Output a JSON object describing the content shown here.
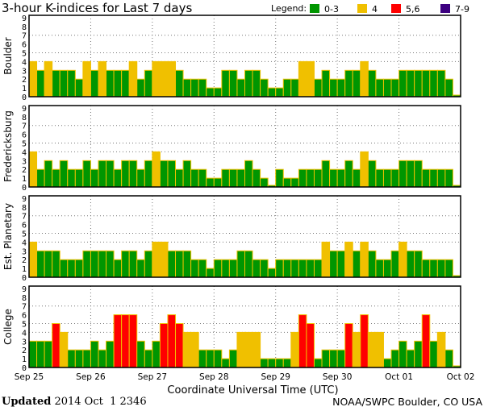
{
  "chart_data": {
    "type": "bar",
    "title": "3-hour K-indices for Last 7 days",
    "xlabel": "Coordinate Universal Time (UTC)",
    "ylim": [
      0,
      9
    ],
    "yticks": [
      "0",
      "1",
      "2",
      "3",
      "4",
      "5",
      "6",
      "7",
      "8",
      "9"
    ],
    "x_tick_labels": [
      "Sep 25",
      "Sep 26",
      "Sep 27",
      "Sep 28",
      "Sep 29",
      "Sep 30",
      "Oct 01",
      "Oct 02"
    ],
    "legend": {
      "title": "Legend:",
      "position": "top-right",
      "entries": [
        {
          "label": "0-3",
          "color": "#009600"
        },
        {
          "label": "4",
          "color": "#f0c000"
        },
        {
          "label": "5,6",
          "color": "#ff0000"
        },
        {
          "label": "7-9",
          "color": "#3c0080"
        }
      ]
    },
    "series": [
      {
        "name": "Boulder",
        "values": [
          4,
          3,
          4,
          3,
          3,
          3,
          2,
          4,
          3,
          4,
          3,
          3,
          3,
          4,
          2,
          3,
          4,
          4,
          4,
          3,
          2,
          2,
          2,
          1,
          1,
          3,
          3,
          2,
          3,
          3,
          2,
          1,
          1,
          2,
          2,
          4,
          4,
          2,
          3,
          2,
          2,
          3,
          3,
          4,
          3,
          2,
          2,
          2,
          3,
          3,
          3,
          3,
          3,
          3,
          2,
          0
        ]
      },
      {
        "name": "Fredericksburg",
        "values": [
          4,
          2,
          3,
          2,
          3,
          2,
          2,
          3,
          2,
          3,
          3,
          2,
          3,
          3,
          2,
          3,
          4,
          3,
          3,
          2,
          3,
          2,
          2,
          1,
          1,
          2,
          2,
          2,
          3,
          2,
          1,
          0,
          2,
          1,
          1,
          2,
          2,
          2,
          3,
          2,
          2,
          3,
          2,
          4,
          3,
          2,
          2,
          2,
          3,
          3,
          3,
          2,
          2,
          2,
          2,
          0
        ]
      },
      {
        "name": "Est. Planetary",
        "values": [
          4,
          3,
          3,
          3,
          2,
          2,
          2,
          3,
          3,
          3,
          3,
          2,
          3,
          3,
          2,
          3,
          4,
          4,
          3,
          3,
          3,
          2,
          2,
          1,
          2,
          2,
          2,
          3,
          3,
          2,
          2,
          1,
          2,
          2,
          2,
          2,
          2,
          2,
          4,
          3,
          3,
          4,
          3,
          4,
          3,
          2,
          2,
          3,
          4,
          3,
          3,
          2,
          2,
          2,
          2,
          0
        ]
      },
      {
        "name": "College",
        "values": [
          3,
          3,
          3,
          5,
          4,
          2,
          2,
          2,
          3,
          2,
          3,
          6,
          6,
          6,
          3,
          2,
          3,
          5,
          6,
          5,
          4,
          4,
          2,
          2,
          2,
          1,
          2,
          4,
          4,
          4,
          1,
          1,
          1,
          1,
          4,
          6,
          5,
          1,
          2,
          2,
          2,
          5,
          4,
          6,
          4,
          4,
          1,
          2,
          3,
          2,
          3,
          6,
          3,
          4,
          2,
          0
        ]
      }
    ]
  },
  "footer": {
    "updated_label": "Updated",
    "updated_value": "2014 Oct  1 2346",
    "source": "NOAA/SWPC Boulder, CO USA"
  }
}
